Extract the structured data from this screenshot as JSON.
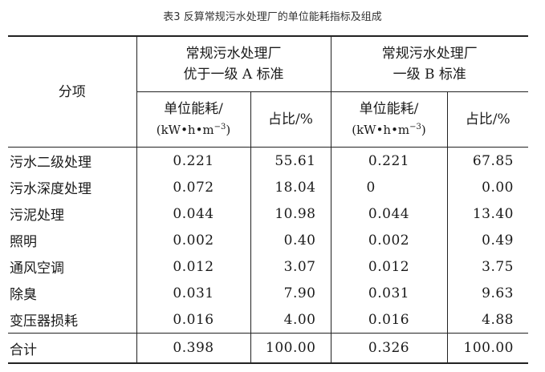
{
  "caption": "表3 反算常规污水处理厂的单位能耗指标及组成",
  "header": {
    "category": "分项",
    "groups": [
      {
        "line1": "常规污水处理厂",
        "line2": "优于一级 A 标准"
      },
      {
        "line1": "常规污水处理厂",
        "line2": "一级 B 标准"
      }
    ],
    "energy_label": "单位能耗/",
    "energy_unit_prefix": "(kW•h•m",
    "energy_unit_exp": "−3",
    "energy_unit_suffix": ")",
    "share_label": "占比/%"
  },
  "rows": [
    {
      "item": "污水二级处理",
      "a_energy": "0.221",
      "a_share": "55.61",
      "b_energy": "0.221",
      "b_share": "67.85"
    },
    {
      "item": "污水深度处理",
      "a_energy": "0.072",
      "a_share": "18.04",
      "b_energy": "0",
      "b_share": "0.00"
    },
    {
      "item": "污泥处理",
      "a_energy": "0.044",
      "a_share": "10.98",
      "b_energy": "0.044",
      "b_share": "13.40"
    },
    {
      "item": "照明",
      "a_energy": "0.002",
      "a_share": "0.40",
      "b_energy": "0.002",
      "b_share": "0.49"
    },
    {
      "item": "通风空调",
      "a_energy": "0.012",
      "a_share": "3.07",
      "b_energy": "0.012",
      "b_share": "3.75"
    },
    {
      "item": "除臭",
      "a_energy": "0.031",
      "a_share": "7.90",
      "b_energy": "0.031",
      "b_share": "9.63"
    },
    {
      "item": "变压器损耗",
      "a_energy": "0.016",
      "a_share": "4.00",
      "b_energy": "0.016",
      "b_share": "4.88"
    }
  ],
  "total": {
    "item": "合计",
    "a_energy": "0.398",
    "a_share": "100.00",
    "b_energy": "0.326",
    "b_share": "100.00"
  }
}
